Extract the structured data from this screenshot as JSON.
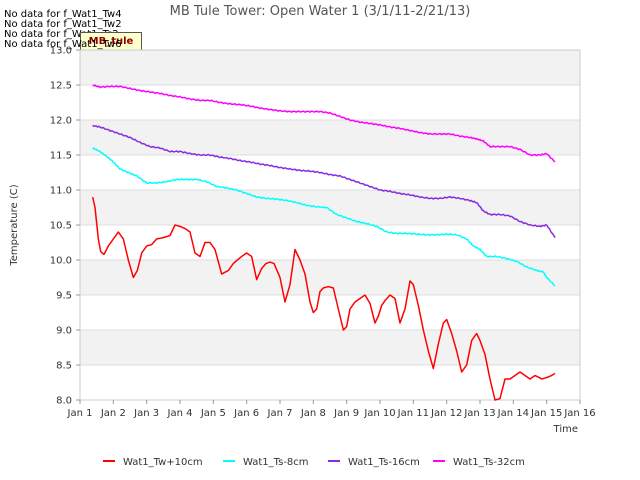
{
  "no_data_notes": [
    "No data for f_Wat1_Tw4",
    "No data for f_Wat1_Tw2",
    "No data for f_Wat1_Ts2",
    "No data for f_Wat1_Tw6"
  ],
  "site_tag": "MB_tule",
  "chart_data": {
    "type": "line",
    "title": "MB Tule Tower: Open Water 1 (3/1/11-2/21/13)",
    "xlabel": "Time",
    "ylabel": "Temperature (C)",
    "xlim": [
      1,
      16
    ],
    "ylim": [
      8.0,
      13.0
    ],
    "xticks": [
      1,
      2,
      3,
      4,
      5,
      6,
      7,
      8,
      9,
      10,
      11,
      12,
      13,
      14,
      15,
      16
    ],
    "xtick_labels": [
      "Jan 1",
      "Jan 2",
      "Jan 3",
      "Jan 4",
      "Jan 5",
      "Jan 6",
      "Jan 7",
      "Jan 8",
      "Jan 9",
      "Jan 10",
      "Jan 11",
      "Jan 12",
      "Jan 13",
      "Jan 14",
      "Jan 15",
      "Jan 16"
    ],
    "yticks": [
      8.0,
      8.5,
      9.0,
      9.5,
      10.0,
      10.5,
      11.0,
      11.5,
      12.0,
      12.5,
      13.0
    ],
    "ytick_labels": [
      "8.0",
      "8.5",
      "9.0",
      "9.5",
      "10.0",
      "10.5",
      "11.0",
      "11.5",
      "12.0",
      "12.5",
      "13.0"
    ],
    "grid_bands": true,
    "legend_position": "bottom",
    "series": [
      {
        "name": "Wat1_Tw+10cm",
        "color": "#ff0000",
        "x": [
          1.38,
          1.45,
          1.55,
          1.62,
          1.72,
          1.85,
          2.0,
          2.15,
          2.3,
          2.45,
          2.6,
          2.72,
          2.85,
          3.0,
          3.15,
          3.3,
          3.5,
          3.7,
          3.85,
          4.0,
          4.15,
          4.3,
          4.45,
          4.6,
          4.75,
          4.9,
          5.05,
          5.25,
          5.45,
          5.6,
          5.72,
          5.85,
          6.0,
          6.15,
          6.3,
          6.45,
          6.58,
          6.7,
          6.82,
          7.0,
          7.15,
          7.3,
          7.45,
          7.6,
          7.75,
          7.9,
          8.0,
          8.1,
          8.2,
          8.3,
          8.45,
          8.6,
          8.75,
          8.9,
          9.0,
          9.1,
          9.25,
          9.4,
          9.55,
          9.7,
          9.85,
          9.95,
          10.05,
          10.15,
          10.3,
          10.45,
          10.6,
          10.75,
          10.9,
          11.0,
          11.15,
          11.3,
          11.45,
          11.6,
          11.75,
          11.9,
          12.0,
          12.15,
          12.3,
          12.45,
          12.6,
          12.75,
          12.9,
          13.0,
          13.15,
          13.3,
          13.45,
          13.6,
          13.75,
          13.9,
          14.05,
          14.2,
          14.35,
          14.5,
          14.65,
          14.78,
          14.85,
          15.0,
          15.15,
          15.25
        ],
        "values": [
          10.9,
          10.75,
          10.3,
          10.12,
          10.08,
          10.2,
          10.3,
          10.4,
          10.3,
          10.0,
          9.75,
          9.85,
          10.1,
          10.2,
          10.22,
          10.3,
          10.32,
          10.35,
          10.5,
          10.48,
          10.45,
          10.4,
          10.1,
          10.05,
          10.25,
          10.25,
          10.15,
          9.8,
          9.85,
          9.95,
          10.0,
          10.05,
          10.1,
          10.05,
          9.72,
          9.88,
          9.95,
          9.97,
          9.95,
          9.75,
          9.4,
          9.65,
          10.15,
          10.0,
          9.8,
          9.4,
          9.25,
          9.3,
          9.55,
          9.6,
          9.62,
          9.6,
          9.3,
          9.0,
          9.05,
          9.3,
          9.4,
          9.45,
          9.5,
          9.38,
          9.1,
          9.2,
          9.35,
          9.42,
          9.5,
          9.45,
          9.1,
          9.3,
          9.7,
          9.65,
          9.35,
          9.0,
          8.7,
          8.45,
          8.8,
          9.1,
          9.15,
          8.95,
          8.7,
          8.4,
          8.5,
          8.85,
          8.95,
          8.85,
          8.65,
          8.3,
          8.0,
          8.02,
          8.3,
          8.3,
          8.35,
          8.4,
          8.35,
          8.3,
          8.35,
          8.32,
          8.3,
          8.32,
          8.35,
          8.38
        ]
      },
      {
        "name": "Wat1_Ts-8cm",
        "color": "#00ffff",
        "x": [
          1.38,
          1.6,
          1.8,
          2.0,
          2.2,
          2.45,
          2.7,
          3.0,
          3.3,
          3.6,
          3.9,
          4.2,
          4.5,
          4.8,
          5.1,
          5.4,
          5.7,
          6.0,
          6.3,
          6.6,
          6.9,
          7.2,
          7.5,
          7.8,
          8.1,
          8.4,
          8.7,
          9.0,
          9.3,
          9.6,
          9.9,
          10.2,
          10.5,
          10.8,
          11.1,
          11.4,
          11.7,
          12.0,
          12.3,
          12.6,
          12.8,
          13.0,
          13.2,
          13.5,
          13.8,
          14.1,
          14.4,
          14.7,
          14.9,
          15.0,
          15.25
        ],
        "values": [
          11.6,
          11.55,
          11.48,
          11.4,
          11.3,
          11.25,
          11.2,
          11.1,
          11.1,
          11.12,
          11.15,
          11.15,
          11.15,
          11.12,
          11.05,
          11.03,
          11.0,
          10.95,
          10.9,
          10.88,
          10.87,
          10.85,
          10.82,
          10.78,
          10.76,
          10.75,
          10.65,
          10.6,
          10.55,
          10.52,
          10.48,
          10.4,
          10.38,
          10.38,
          10.37,
          10.36,
          10.36,
          10.37,
          10.36,
          10.3,
          10.2,
          10.15,
          10.05,
          10.05,
          10.02,
          9.98,
          9.9,
          9.85,
          9.83,
          9.75,
          9.63
        ]
      },
      {
        "name": "Wat1_Ts-16cm",
        "color": "#8a2be2",
        "x": [
          1.38,
          1.6,
          1.9,
          2.2,
          2.5,
          2.8,
          3.1,
          3.4,
          3.7,
          4.0,
          4.3,
          4.6,
          4.9,
          5.2,
          5.5,
          5.8,
          6.1,
          6.4,
          6.7,
          7.0,
          7.3,
          7.6,
          7.9,
          8.2,
          8.5,
          8.8,
          9.1,
          9.4,
          9.7,
          10.0,
          10.3,
          10.6,
          10.9,
          11.2,
          11.5,
          11.8,
          12.1,
          12.4,
          12.7,
          12.9,
          13.1,
          13.3,
          13.6,
          13.9,
          14.2,
          14.5,
          14.8,
          15.0,
          15.25
        ],
        "values": [
          11.92,
          11.9,
          11.85,
          11.8,
          11.75,
          11.68,
          11.62,
          11.6,
          11.55,
          11.55,
          11.52,
          11.5,
          11.5,
          11.47,
          11.45,
          11.42,
          11.4,
          11.37,
          11.35,
          11.32,
          11.3,
          11.28,
          11.27,
          11.25,
          11.22,
          11.2,
          11.15,
          11.1,
          11.05,
          11.0,
          10.98,
          10.95,
          10.93,
          10.9,
          10.88,
          10.88,
          10.9,
          10.88,
          10.85,
          10.82,
          10.7,
          10.65,
          10.65,
          10.63,
          10.55,
          10.5,
          10.48,
          10.5,
          10.32
        ]
      },
      {
        "name": "Wat1_Ts-32cm",
        "color": "#ff00ff",
        "x": [
          1.38,
          1.6,
          1.9,
          2.2,
          2.5,
          2.8,
          3.1,
          3.4,
          3.7,
          4.0,
          4.3,
          4.6,
          4.9,
          5.2,
          5.5,
          5.8,
          6.1,
          6.4,
          6.7,
          7.0,
          7.3,
          7.6,
          7.9,
          8.2,
          8.5,
          8.8,
          9.1,
          9.4,
          9.7,
          10.0,
          10.3,
          10.6,
          10.9,
          11.2,
          11.5,
          11.8,
          12.1,
          12.4,
          12.7,
          12.9,
          13.1,
          13.3,
          13.6,
          13.9,
          14.2,
          14.5,
          14.8,
          15.0,
          15.25
        ],
        "values": [
          12.5,
          12.47,
          12.48,
          12.48,
          12.45,
          12.42,
          12.4,
          12.38,
          12.35,
          12.33,
          12.3,
          12.28,
          12.28,
          12.25,
          12.23,
          12.22,
          12.2,
          12.17,
          12.15,
          12.13,
          12.12,
          12.12,
          12.12,
          12.12,
          12.1,
          12.05,
          12.0,
          11.97,
          11.95,
          11.93,
          11.9,
          11.88,
          11.85,
          11.82,
          11.8,
          11.8,
          11.8,
          11.77,
          11.75,
          11.73,
          11.7,
          11.62,
          11.62,
          11.62,
          11.58,
          11.5,
          11.5,
          11.52,
          11.4
        ]
      }
    ]
  }
}
